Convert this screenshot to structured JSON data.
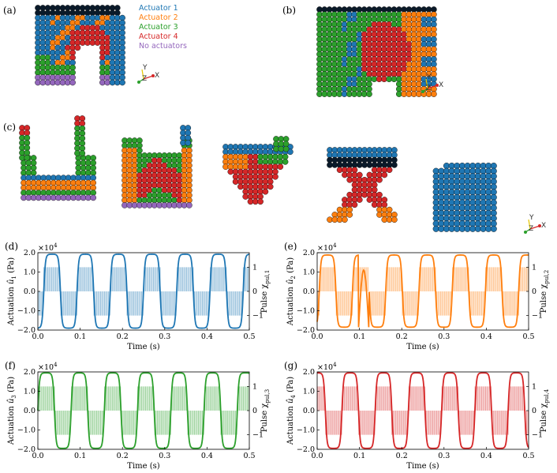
{
  "colors": {
    "actuator1": "#1f77b4",
    "actuator2": "#ff7f0e",
    "actuator3": "#2ca02c",
    "actuator4": "#d62728",
    "none": "#9467bd",
    "ball_dark": "#0a1a2a"
  },
  "legend": {
    "items": [
      {
        "label": "Actuator 1",
        "color": "#1f77b4"
      },
      {
        "label": "Actuator 2",
        "color": "#ff7f0e"
      },
      {
        "label": "Actuator 3",
        "color": "#2ca02c"
      },
      {
        "label": "Actuator 4",
        "color": "#d62728"
      },
      {
        "label": "No actuators",
        "color": "#9467bd"
      }
    ]
  },
  "panels": {
    "a": "(a)",
    "b": "(b)",
    "c": "(c)",
    "d": "(d)",
    "e": "(e)",
    "f": "(f)",
    "g": "(g)"
  },
  "axes_triad": {
    "x": "X",
    "y": "Y",
    "z": "Z"
  },
  "chart_data": [
    {
      "type": "line",
      "panel": "(d)",
      "color": "#1f77b4",
      "xlabel": "Time (s)",
      "ylabel": "Actuation û1 (Pa)",
      "ylabel_main": "Actuation ",
      "ylabel_sym": "û",
      "ylabel_sub": "1",
      "ylabel_unit": " (Pa)",
      "y2label_main": "Pulse χ",
      "y2label_sub": "pul,1",
      "multiplier": "×10",
      "multiplier_exp": "4",
      "xlim": [
        0,
        0.5
      ],
      "ylim": [
        -2.0,
        2.0
      ],
      "y2lim": [
        -1.6,
        1.6
      ],
      "xticks": [
        "0.0",
        "0.1",
        "0.2",
        "0.3",
        "0.4",
        "0.5"
      ],
      "yticks": [
        "−2.0",
        "−1.0",
        "0.0",
        "1.0",
        "2.0"
      ],
      "y2ticks": [
        "−1",
        "0",
        "1"
      ],
      "series": [
        {
          "kind": "actuation",
          "shape": "smooth-square",
          "period": 0.0786,
          "phase": 0.014,
          "duty": 0.5,
          "low": -1.9,
          "high": 1.92
        },
        {
          "kind": "pulse",
          "period": 0.0786,
          "phase": 0.014,
          "duty": 0.5,
          "low": -1,
          "high": 1
        }
      ]
    },
    {
      "type": "line",
      "panel": "(e)",
      "color": "#ff7f0e",
      "xlabel": "Time (s)",
      "ylabel": "Actuation û2 (Pa)",
      "ylabel_main": "Actuation ",
      "ylabel_sym": "û",
      "ylabel_sub": "2",
      "ylabel_unit": " (Pa)",
      "y2label_main": "Pulse χ",
      "y2label_sub": "pul,2",
      "multiplier": "×10",
      "multiplier_exp": "4",
      "xlim": [
        0,
        0.5
      ],
      "ylim": [
        -2.0,
        2.0
      ],
      "y2lim": [
        -1.6,
        1.6
      ],
      "xticks": [
        "0.0",
        "0.1",
        "0.2",
        "0.3",
        "0.4",
        "0.5"
      ],
      "yticks": [
        "−2.0",
        "−1.0",
        "0.0",
        "1.0",
        "2.0"
      ],
      "y2ticks": [
        "−1",
        "0",
        "1"
      ],
      "series": [
        {
          "kind": "actuation",
          "shape": "smooth-square",
          "period": 0.0786,
          "phase": 0.005,
          "duty": 0.5,
          "low": -1.85,
          "high": 1.88,
          "notch_at": 0.11,
          "notch_high": 1.1
        },
        {
          "kind": "pulse",
          "period": 0.0786,
          "phase": 0.005,
          "duty": 0.5,
          "low": -1,
          "high": 1
        }
      ]
    },
    {
      "type": "line",
      "panel": "(f)",
      "color": "#2ca02c",
      "xlabel": "Time (s)",
      "ylabel": "Actuation û3 (Pa)",
      "ylabel_main": "Actuation ",
      "ylabel_sym": "û",
      "ylabel_sub": "3",
      "ylabel_unit": " (Pa)",
      "y2label_main": "Pulse χ",
      "y2label_sub": "pul,3",
      "multiplier": "×10",
      "multiplier_exp": "4",
      "xlim": [
        0,
        0.5
      ],
      "ylim": [
        -2.0,
        2.0
      ],
      "y2lim": [
        -1.6,
        1.6
      ],
      "xticks": [
        "0.0",
        "0.1",
        "0.2",
        "0.3",
        "0.4",
        "0.5"
      ],
      "yticks": [
        "−2.0",
        "−1.0",
        "0.0",
        "1.0",
        "2.0"
      ],
      "y2ticks": [
        "−1",
        "0",
        "1"
      ],
      "series": [
        {
          "kind": "actuation",
          "shape": "smooth-square",
          "period": 0.0786,
          "phase": 0.0,
          "duty": 0.5,
          "low": -1.95,
          "high": 1.95
        },
        {
          "kind": "pulse",
          "period": 0.0786,
          "phase": 0.0,
          "duty": 0.5,
          "low": -1,
          "high": 1
        }
      ]
    },
    {
      "type": "line",
      "panel": "(g)",
      "color": "#d62728",
      "xlabel": "Time (s)",
      "ylabel": "Actuation û4 (Pa)",
      "ylabel_main": "Actuation ",
      "ylabel_sym": "û",
      "ylabel_sub": "4",
      "ylabel_unit": " (Pa)",
      "y2label_main": "Pulse χ",
      "y2label_sub": "pul,4",
      "multiplier": "×10",
      "multiplier_exp": "4",
      "xlim": [
        0,
        0.5
      ],
      "ylim": [
        -2.0,
        2.0
      ],
      "y2lim": [
        -1.6,
        1.6
      ],
      "xticks": [
        "0.0",
        "0.1",
        "0.2",
        "0.3",
        "0.4",
        "0.5"
      ],
      "yticks": [
        "−2.0",
        "−1.0",
        "0.0",
        "1.0",
        "2.0"
      ],
      "y2ticks": [
        "−1",
        "0",
        "1"
      ],
      "series": [
        {
          "kind": "actuation",
          "shape": "smooth-square",
          "period": 0.0786,
          "phase": -0.02,
          "duty": 0.5,
          "low": -1.95,
          "high": 1.95
        },
        {
          "kind": "pulse",
          "period": 0.0786,
          "phase": -0.02,
          "duty": 0.5,
          "low": -1,
          "high": 1
        }
      ]
    }
  ]
}
